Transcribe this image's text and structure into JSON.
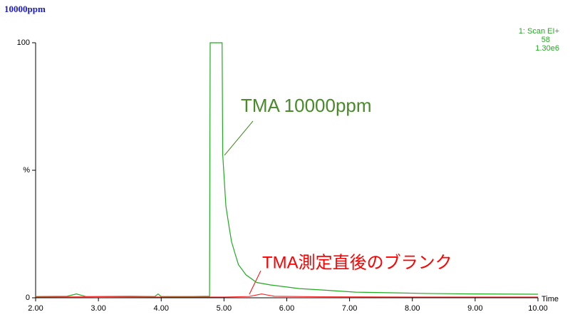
{
  "chart_data": {
    "type": "line",
    "title": "10000ppm",
    "info": [
      "1: Scan EI+",
      "58",
      "1.30e6"
    ],
    "x_label": "Time",
    "annotations": [
      {
        "text": "TMA 10000ppm",
        "color": "#4a8a2a"
      },
      {
        "text": "TMA測定直後のブランク",
        "color": "#ff0000"
      }
    ],
    "xlim": [
      2,
      10
    ],
    "xticks": [
      {
        "value": 2,
        "label": "2.00"
      },
      {
        "value": 3,
        "label": "3.00"
      },
      {
        "value": 4,
        "label": "4.00"
      },
      {
        "value": 5,
        "label": "5.00"
      },
      {
        "value": 6,
        "label": "6.00"
      },
      {
        "value": 7,
        "label": "7.00"
      },
      {
        "value": 8,
        "label": "8.00"
      },
      {
        "value": 9,
        "label": "9.00"
      },
      {
        "value": 10,
        "label": "10.00"
      }
    ],
    "ylim": [
      0,
      100
    ],
    "yticks": [
      0,
      {
        "value": 50,
        "label": "%"
      },
      100
    ],
    "series": [
      {
        "color": "#22aa22",
        "x": [
          2.0,
          2.5,
          2.65,
          2.8,
          3.5,
          3.9,
          3.95,
          4.0,
          4.5,
          4.77,
          4.78,
          4.97,
          4.98,
          5.03,
          5.08,
          5.12,
          5.18,
          5.23,
          5.35,
          5.52,
          5.75,
          6.2,
          6.6,
          7.1,
          7.6,
          8.24,
          9.0,
          10.0
        ],
        "values": [
          0.5,
          0.6,
          1.5,
          0.5,
          0.6,
          0.5,
          1.5,
          0.5,
          0.5,
          0.6,
          100,
          100,
          56,
          36,
          28,
          22,
          17,
          13,
          9,
          6,
          5,
          3.6,
          3,
          2.2,
          2,
          1.7,
          1.5,
          1.4
        ]
      },
      {
        "color": "#ff3030",
        "x": [
          2.0,
          3.0,
          4.0,
          5.0,
          5.4,
          5.6,
          5.8,
          6.5,
          8.0,
          10.0
        ],
        "values": [
          0.3,
          0.4,
          0.3,
          0.3,
          0.5,
          1.5,
          0.6,
          0.4,
          0.3,
          0.3
        ]
      }
    ]
  }
}
